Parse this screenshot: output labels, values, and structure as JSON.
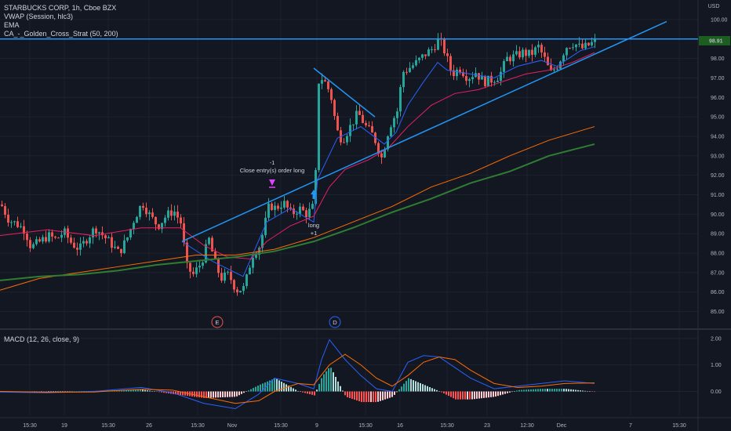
{
  "legend": {
    "symbol_line": "STARBUCKS CORP, 1h, Cboe BZX",
    "vwap": "VWAP (Session, hlc3)",
    "ema": "EMA",
    "strategy": "CA_-_Golden_Cross_Strat (50, 200)"
  },
  "macd_legend": "MACD (12, 26, close, 9)",
  "colors": {
    "background": "#131722",
    "grid": "#1e222d",
    "up": "#26a69a",
    "down": "#ef5350",
    "trendline": "#2196f3",
    "vwap": "#2962ff",
    "ema": "#e91e63",
    "ma50": "#ff6d00",
    "ma200": "#2e7d32",
    "price_tag": "#1b5e20"
  },
  "chart_data": [
    {
      "type": "candlestick",
      "title": "STARBUCKS CORP, 1h, Cboe BZX",
      "currency": "USD",
      "ylim": [
        84.5,
        100.6
      ],
      "y_ticks": [
        "100.00",
        "99.00",
        "98.00",
        "97.00",
        "96.00",
        "95.00",
        "94.00",
        "93.00",
        "92.00",
        "91.00",
        "90.00",
        "89.00",
        "88.00",
        "87.00",
        "86.00",
        "85.00"
      ],
      "x_ticks": [
        "15:30",
        "19",
        "15:30",
        "26",
        "15:30",
        "Nov",
        "15:30",
        "9",
        "15:30",
        "16",
        "15:30",
        "23",
        "12:30",
        "Dec",
        "7",
        "15:30"
      ],
      "last_price_label": "98.91",
      "close_path": [
        [
          0,
          90.5
        ],
        [
          10,
          89.7
        ],
        [
          20,
          89.5
        ],
        [
          30,
          89.2
        ],
        [
          38,
          88.3
        ],
        [
          50,
          88.6
        ],
        [
          60,
          88.9
        ],
        [
          70,
          88.7
        ],
        [
          80,
          89.1
        ],
        [
          90,
          88.5
        ],
        [
          100,
          88.2
        ],
        [
          110,
          88.8
        ],
        [
          120,
          89.3
        ],
        [
          130,
          88.9
        ],
        [
          140,
          88.5
        ],
        [
          150,
          88.0
        ],
        [
          160,
          88.7
        ],
        [
          170,
          89.8
        ],
        [
          180,
          90.6
        ],
        [
          190,
          89.9
        ],
        [
          200,
          89.4
        ],
        [
          210,
          89.9
        ],
        [
          220,
          90.2
        ],
        [
          230,
          89.5
        ],
        [
          236,
          87.3
        ],
        [
          245,
          86.9
        ],
        [
          255,
          87.5
        ],
        [
          265,
          88.7
        ],
        [
          272,
          87.6
        ],
        [
          280,
          86.7
        ],
        [
          290,
          86.9
        ],
        [
          300,
          86.1
        ],
        [
          310,
          86.2
        ],
        [
          320,
          87.9
        ],
        [
          330,
          88.4
        ],
        [
          342,
          90.5
        ],
        [
          350,
          90.3
        ],
        [
          360,
          90.6
        ],
        [
          370,
          90.0
        ],
        [
          380,
          90.3
        ],
        [
          390,
          90.0
        ],
        [
          400,
          90.5
        ],
        [
          404,
          96.8
        ],
        [
          410,
          97.0
        ],
        [
          420,
          96.2
        ],
        [
          428,
          94.3
        ],
        [
          435,
          93.8
        ],
        [
          445,
          94.5
        ],
        [
          455,
          95.2
        ],
        [
          465,
          94.5
        ],
        [
          475,
          94.0
        ],
        [
          485,
          92.9
        ],
        [
          495,
          94.5
        ],
        [
          505,
          95.3
        ],
        [
          512,
          97.3
        ],
        [
          520,
          97.5
        ],
        [
          530,
          97.8
        ],
        [
          540,
          98.2
        ],
        [
          550,
          98.5
        ],
        [
          558,
          99.0
        ],
        [
          565,
          98.4
        ],
        [
          575,
          97.2
        ],
        [
          585,
          97.5
        ],
        [
          595,
          97.0
        ],
        [
          605,
          97.3
        ],
        [
          615,
          96.8
        ],
        [
          625,
          96.9
        ],
        [
          635,
          97.1
        ],
        [
          645,
          98.0
        ],
        [
          655,
          98.1
        ],
        [
          665,
          98.3
        ],
        [
          675,
          98.2
        ],
        [
          685,
          98.6
        ],
        [
          695,
          97.8
        ],
        [
          700,
          97.2
        ],
        [
          710,
          97.7
        ],
        [
          720,
          98.6
        ],
        [
          730,
          98.8
        ],
        [
          740,
          98.5
        ],
        [
          750,
          98.7
        ],
        [
          758,
          98.9
        ]
      ],
      "series": [
        {
          "name": "VWAP",
          "values": [
            [
              232,
              88.6
            ],
            [
              270,
              87.6
            ],
            [
              310,
              86.8
            ],
            [
              340,
              89.6
            ],
            [
              370,
              90.3
            ],
            [
              400,
              89.6
            ],
            [
              405,
              91.8
            ],
            [
              430,
              93.9
            ],
            [
              460,
              94.5
            ],
            [
              490,
              93.6
            ],
            [
              505,
              94.2
            ],
            [
              520,
              95.6
            ],
            [
              540,
              96.8
            ],
            [
              558,
              97.8
            ],
            [
              570,
              97.4
            ],
            [
              600,
              97.2
            ],
            [
              630,
              97.0
            ],
            [
              660,
              97.6
            ],
            [
              690,
              97.9
            ],
            [
              710,
              97.6
            ],
            [
              740,
              98.4
            ],
            [
              758,
              98.6
            ]
          ]
        },
        {
          "name": "EMA",
          "values": [
            [
              0,
              88.9
            ],
            [
              60,
              89.2
            ],
            [
              120,
              88.9
            ],
            [
              180,
              89.3
            ],
            [
              230,
              89.3
            ],
            [
              260,
              88.4
            ],
            [
              290,
              87.8
            ],
            [
              320,
              87.7
            ],
            [
              340,
              88.6
            ],
            [
              370,
              89.4
            ],
            [
              400,
              89.9
            ],
            [
              420,
              91.4
            ],
            [
              440,
              92.3
            ],
            [
              470,
              92.8
            ],
            [
              495,
              93.4
            ],
            [
              520,
              94.5
            ],
            [
              550,
              95.6
            ],
            [
              580,
              96.2
            ],
            [
              610,
              96.4
            ],
            [
              640,
              96.8
            ],
            [
              670,
              97.2
            ],
            [
              700,
              97.4
            ],
            [
              730,
              97.8
            ],
            [
              758,
              98.3
            ]
          ]
        },
        {
          "name": "MA 50",
          "values": [
            [
              0,
              86.1
            ],
            [
              50,
              86.7
            ],
            [
              100,
              87.0
            ],
            [
              150,
              87.3
            ],
            [
              200,
              87.6
            ],
            [
              250,
              87.9
            ],
            [
              300,
              87.9
            ],
            [
              350,
              88.2
            ],
            [
              400,
              88.8
            ],
            [
              450,
              89.6
            ],
            [
              500,
              90.4
            ],
            [
              550,
              91.4
            ],
            [
              600,
              92.1
            ],
            [
              650,
              93.0
            ],
            [
              700,
              93.8
            ],
            [
              758,
              94.5
            ]
          ]
        },
        {
          "name": "MA 200",
          "values": [
            [
              0,
              86.6
            ],
            [
              50,
              86.8
            ],
            [
              100,
              86.9
            ],
            [
              150,
              87.1
            ],
            [
              200,
              87.4
            ],
            [
              250,
              87.6
            ],
            [
              300,
              87.8
            ],
            [
              350,
              88.1
            ],
            [
              400,
              88.6
            ],
            [
              450,
              89.3
            ],
            [
              500,
              90.1
            ],
            [
              550,
              90.8
            ],
            [
              600,
              91.6
            ],
            [
              650,
              92.2
            ],
            [
              700,
              93.0
            ],
            [
              758,
              93.6
            ]
          ]
        }
      ],
      "trendlines": [
        {
          "from": [
            232,
            88.6
          ],
          "to": [
            850,
            99.9
          ]
        },
        {
          "from": [
            0,
            99.0
          ],
          "to": [
            890,
            99.0
          ]
        },
        {
          "from": [
            400,
            97.5
          ],
          "to": [
            478,
            95.0
          ]
        }
      ],
      "annotations": {
        "short_entry_label": "-1",
        "short_entry_text": "Close entry(s) order long",
        "long_label": "long",
        "long_qty": "+1",
        "earnings_marker": "E",
        "dividend_marker": "D"
      }
    },
    {
      "type": "line",
      "title": "MACD (12, 26, close, 9)",
      "ylim": [
        -0.9,
        2.2
      ],
      "y_ticks": [
        "2.00",
        "1.00",
        "0.00"
      ],
      "series": [
        {
          "name": "MACD",
          "values": [
            [
              0,
              -0.02
            ],
            [
              60,
              -0.05
            ],
            [
              120,
              0.0
            ],
            [
              180,
              0.15
            ],
            [
              220,
              -0.05
            ],
            [
              260,
              -0.45
            ],
            [
              300,
              -0.65
            ],
            [
              330,
              -0.1
            ],
            [
              350,
              0.5
            ],
            [
              380,
              0.3
            ],
            [
              400,
              0.1
            ],
            [
              410,
              1.2
            ],
            [
              420,
              1.95
            ],
            [
              440,
              1.2
            ],
            [
              460,
              0.6
            ],
            [
              480,
              0.1
            ],
            [
              500,
              0.0
            ],
            [
              520,
              1.1
            ],
            [
              540,
              1.35
            ],
            [
              560,
              1.3
            ],
            [
              580,
              0.9
            ],
            [
              600,
              0.5
            ],
            [
              630,
              0.1
            ],
            [
              660,
              0.2
            ],
            [
              690,
              0.3
            ],
            [
              720,
              0.4
            ],
            [
              758,
              0.3
            ]
          ]
        },
        {
          "name": "Signal",
          "values": [
            [
              0,
              0.0
            ],
            [
              60,
              -0.03
            ],
            [
              120,
              -0.02
            ],
            [
              180,
              0.08
            ],
            [
              220,
              0.05
            ],
            [
              260,
              -0.2
            ],
            [
              300,
              -0.45
            ],
            [
              330,
              -0.35
            ],
            [
              350,
              0.0
            ],
            [
              380,
              0.3
            ],
            [
              400,
              0.25
            ],
            [
              420,
              1.0
            ],
            [
              440,
              1.4
            ],
            [
              460,
              1.0
            ],
            [
              480,
              0.5
            ],
            [
              500,
              0.2
            ],
            [
              520,
              0.6
            ],
            [
              540,
              1.1
            ],
            [
              560,
              1.3
            ],
            [
              580,
              1.2
            ],
            [
              600,
              0.8
            ],
            [
              630,
              0.3
            ],
            [
              660,
              0.15
            ],
            [
              690,
              0.2
            ],
            [
              720,
              0.3
            ],
            [
              758,
              0.32
            ]
          ]
        }
      ]
    }
  ]
}
